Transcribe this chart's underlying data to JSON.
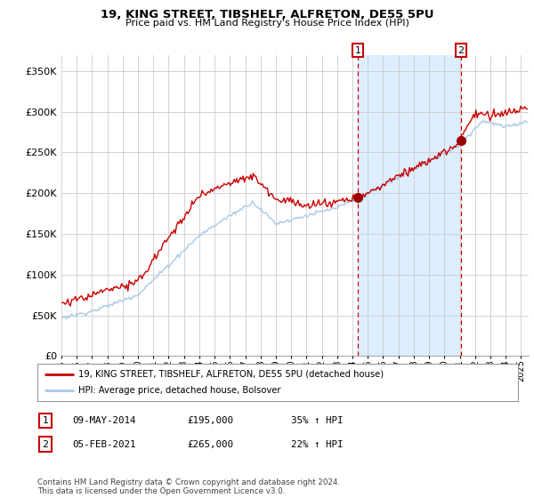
{
  "title": "19, KING STREET, TIBSHELF, ALFRETON, DE55 5PU",
  "subtitle": "Price paid vs. HM Land Registry's House Price Index (HPI)",
  "ylim": [
    0,
    370000
  ],
  "xlim_start": 1995.0,
  "xlim_end": 2025.5,
  "sale1_date": 2014.35,
  "sale1_price": 195000,
  "sale1_label": "1",
  "sale2_date": 2021.09,
  "sale2_price": 265000,
  "sale2_label": "2",
  "legend_line1": "19, KING STREET, TIBSHELF, ALFRETON, DE55 5PU (detached house)",
  "legend_line2": "HPI: Average price, detached house, Bolsover",
  "table_row1": [
    "1",
    "09-MAY-2014",
    "£195,000",
    "35% ↑ HPI"
  ],
  "table_row2": [
    "2",
    "05-FEB-2021",
    "£265,000",
    "22% ↑ HPI"
  ],
  "footnote": "Contains HM Land Registry data © Crown copyright and database right 2024.\nThis data is licensed under the Open Government Licence v3.0.",
  "hpi_color": "#aac8e8",
  "price_color": "#cc0000",
  "vline_color": "#cc0000",
  "marker_color": "#990000",
  "shade_color": "#ddeeff",
  "background_color": "#ffffff",
  "grid_color": "#cccccc"
}
